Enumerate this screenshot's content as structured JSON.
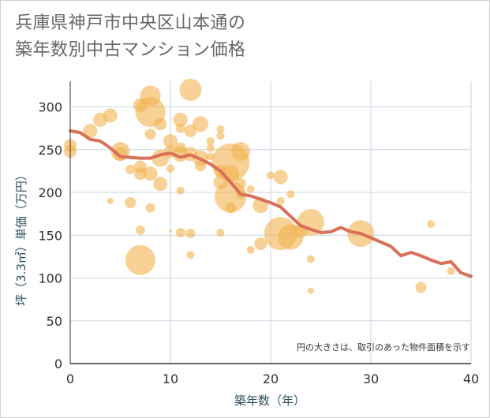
{
  "title_line1": "兵庫県神戸市中央区山本通の",
  "title_line2": "築年数別中古マンション価格",
  "chart_data": {
    "type": "scatter",
    "xlabel": "築年数（年）",
    "ylabel": "坪（3.3㎡）単価（万円）",
    "xlim": [
      0,
      40
    ],
    "ylim": [
      0,
      330
    ],
    "xticks": [
      0,
      10,
      20,
      30,
      40
    ],
    "yticks": [
      0,
      50,
      100,
      150,
      200,
      250,
      300
    ],
    "grid": true,
    "note": "円の大きさは、取引のあった物件面積を示す",
    "colors": {
      "bubble": "#f2b24e",
      "trend": "#d9705a",
      "grid": "#c9d6e3",
      "axis": "#333333"
    },
    "series": [
      {
        "kind": "bubble",
        "points": [
          {
            "x": 0,
            "y": 255,
            "s": 8
          },
          {
            "x": 0,
            "y": 248,
            "s": 8
          },
          {
            "x": 2,
            "y": 272,
            "s": 9
          },
          {
            "x": 3,
            "y": 285,
            "s": 9
          },
          {
            "x": 4,
            "y": 290,
            "s": 9
          },
          {
            "x": 4,
            "y": 190,
            "s": 4
          },
          {
            "x": 5,
            "y": 248,
            "s": 12
          },
          {
            "x": 5,
            "y": 245,
            "s": 9
          },
          {
            "x": 6,
            "y": 227,
            "s": 6
          },
          {
            "x": 6,
            "y": 188,
            "s": 7
          },
          {
            "x": 7,
            "y": 302,
            "s": 9
          },
          {
            "x": 7,
            "y": 230,
            "s": 8
          },
          {
            "x": 7,
            "y": 222,
            "s": 8
          },
          {
            "x": 7,
            "y": 156,
            "s": 6
          },
          {
            "x": 7,
            "y": 121,
            "s": 19
          },
          {
            "x": 8,
            "y": 313,
            "s": 13
          },
          {
            "x": 8,
            "y": 294,
            "s": 19
          },
          {
            "x": 8,
            "y": 268,
            "s": 7
          },
          {
            "x": 8,
            "y": 222,
            "s": 9
          },
          {
            "x": 8,
            "y": 182,
            "s": 6
          },
          {
            "x": 9,
            "y": 280,
            "s": 8
          },
          {
            "x": 9,
            "y": 240,
            "s": 11
          },
          {
            "x": 9,
            "y": 210,
            "s": 9
          },
          {
            "x": 10,
            "y": 260,
            "s": 9
          },
          {
            "x": 10,
            "y": 248,
            "s": 8
          },
          {
            "x": 10,
            "y": 228,
            "s": 5
          },
          {
            "x": 10,
            "y": 155,
            "s": 2
          },
          {
            "x": 11,
            "y": 285,
            "s": 9
          },
          {
            "x": 11,
            "y": 275,
            "s": 6
          },
          {
            "x": 11,
            "y": 252,
            "s": 7
          },
          {
            "x": 11,
            "y": 245,
            "s": 10
          },
          {
            "x": 11,
            "y": 202,
            "s": 5
          },
          {
            "x": 11,
            "y": 153,
            "s": 6
          },
          {
            "x": 12,
            "y": 320,
            "s": 14
          },
          {
            "x": 12,
            "y": 272,
            "s": 8
          },
          {
            "x": 12,
            "y": 245,
            "s": 9
          },
          {
            "x": 12,
            "y": 152,
            "s": 6
          },
          {
            "x": 12,
            "y": 127,
            "s": 5
          },
          {
            "x": 13,
            "y": 280,
            "s": 10
          },
          {
            "x": 13,
            "y": 240,
            "s": 10
          },
          {
            "x": 13,
            "y": 231,
            "s": 7
          },
          {
            "x": 14,
            "y": 260,
            "s": 5
          },
          {
            "x": 14,
            "y": 252,
            "s": 5
          },
          {
            "x": 14,
            "y": 242,
            "s": 5
          },
          {
            "x": 15,
            "y": 274,
            "s": 5
          },
          {
            "x": 15,
            "y": 266,
            "s": 5
          },
          {
            "x": 15,
            "y": 225,
            "s": 8
          },
          {
            "x": 15,
            "y": 212,
            "s": 9
          },
          {
            "x": 15,
            "y": 153,
            "s": 5
          },
          {
            "x": 16,
            "y": 235,
            "s": 24
          },
          {
            "x": 16,
            "y": 222,
            "s": 11
          },
          {
            "x": 16,
            "y": 195,
            "s": 20
          },
          {
            "x": 16,
            "y": 182,
            "s": 7
          },
          {
            "x": 17,
            "y": 248,
            "s": 12
          },
          {
            "x": 17,
            "y": 210,
            "s": 7
          },
          {
            "x": 17,
            "y": 198,
            "s": 6
          },
          {
            "x": 18,
            "y": 204,
            "s": 5
          },
          {
            "x": 18,
            "y": 133,
            "s": 5
          },
          {
            "x": 19,
            "y": 185,
            "s": 10
          },
          {
            "x": 19,
            "y": 140,
            "s": 8
          },
          {
            "x": 20,
            "y": 220,
            "s": 5
          },
          {
            "x": 21,
            "y": 218,
            "s": 9
          },
          {
            "x": 21,
            "y": 190,
            "s": 5
          },
          {
            "x": 21,
            "y": 152,
            "s": 21
          },
          {
            "x": 22,
            "y": 148,
            "s": 16
          },
          {
            "x": 22,
            "y": 198,
            "s": 5
          },
          {
            "x": 23,
            "y": 155,
            "s": 9
          },
          {
            "x": 24,
            "y": 165,
            "s": 17
          },
          {
            "x": 24,
            "y": 122,
            "s": 5
          },
          {
            "x": 24,
            "y": 85,
            "s": 4
          },
          {
            "x": 29,
            "y": 152,
            "s": 17
          },
          {
            "x": 35,
            "y": 89,
            "s": 7
          },
          {
            "x": 36,
            "y": 163,
            "s": 5
          },
          {
            "x": 38,
            "y": 108,
            "s": 5
          }
        ]
      },
      {
        "kind": "line",
        "points": [
          {
            "x": 0,
            "y": 272
          },
          {
            "x": 1,
            "y": 270
          },
          {
            "x": 2,
            "y": 262
          },
          {
            "x": 3,
            "y": 260
          },
          {
            "x": 4,
            "y": 252
          },
          {
            "x": 5,
            "y": 242
          },
          {
            "x": 6,
            "y": 241
          },
          {
            "x": 7,
            "y": 240
          },
          {
            "x": 8,
            "y": 240
          },
          {
            "x": 9,
            "y": 244
          },
          {
            "x": 10,
            "y": 246
          },
          {
            "x": 11,
            "y": 241
          },
          {
            "x": 12,
            "y": 244
          },
          {
            "x": 13,
            "y": 239
          },
          {
            "x": 14,
            "y": 233
          },
          {
            "x": 15,
            "y": 225
          },
          {
            "x": 16,
            "y": 212
          },
          {
            "x": 17,
            "y": 198
          },
          {
            "x": 18,
            "y": 196
          },
          {
            "x": 19,
            "y": 192
          },
          {
            "x": 20,
            "y": 188
          },
          {
            "x": 21,
            "y": 183
          },
          {
            "x": 22,
            "y": 172
          },
          {
            "x": 23,
            "y": 161
          },
          {
            "x": 24,
            "y": 157
          },
          {
            "x": 25,
            "y": 153
          },
          {
            "x": 26,
            "y": 154
          },
          {
            "x": 27,
            "y": 159
          },
          {
            "x": 28,
            "y": 154
          },
          {
            "x": 29,
            "y": 152
          },
          {
            "x": 30,
            "y": 147
          },
          {
            "x": 31,
            "y": 142
          },
          {
            "x": 32,
            "y": 137
          },
          {
            "x": 33,
            "y": 126
          },
          {
            "x": 34,
            "y": 130
          },
          {
            "x": 35,
            "y": 126
          },
          {
            "x": 36,
            "y": 121
          },
          {
            "x": 37,
            "y": 117
          },
          {
            "x": 38,
            "y": 119
          },
          {
            "x": 39,
            "y": 106
          },
          {
            "x": 40,
            "y": 102
          }
        ]
      }
    ]
  }
}
